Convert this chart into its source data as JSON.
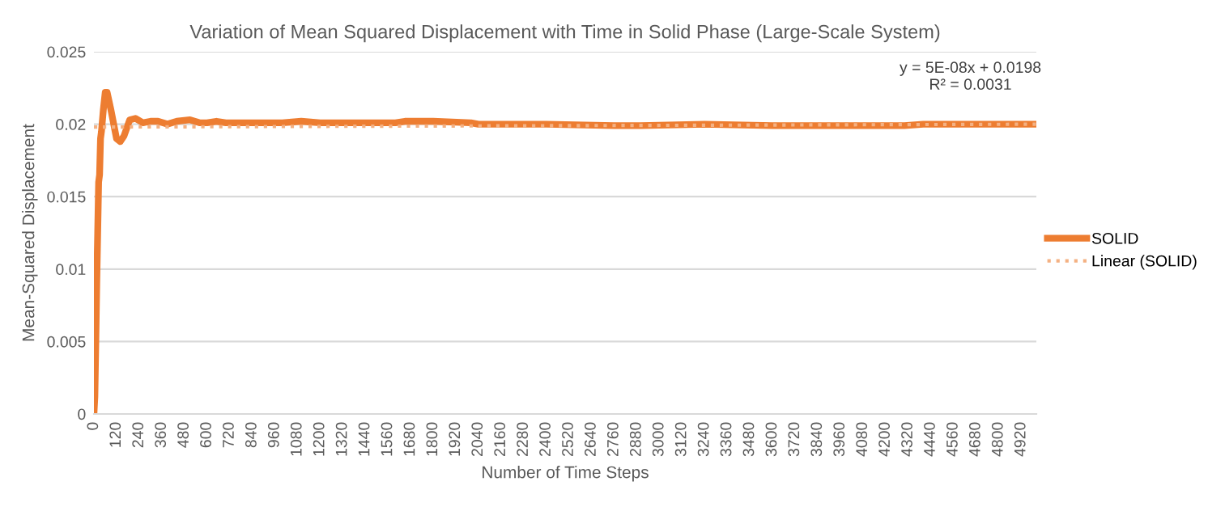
{
  "chart_data": {
    "type": "line",
    "title": "Variation of Mean Squared Displacement with Time in Solid Phase (Large-Scale System)",
    "xlabel": "Number of Time Steps",
    "ylabel": "Mean-Squared Displacement",
    "series": [
      {
        "name": "SOLID",
        "color": "#ed7d31",
        "line_style": "solid",
        "x": [
          0,
          5,
          10,
          15,
          20,
          25,
          30,
          35,
          40,
          50,
          60,
          70,
          90,
          120,
          140,
          160,
          190,
          220,
          260,
          300,
          340,
          390,
          440,
          510,
          560,
          600,
          650,
          700,
          900,
          1000,
          1100,
          1200,
          1600,
          1650,
          1800,
          2000,
          2040,
          2400,
          2760,
          2900,
          3240,
          3600,
          4300,
          4400,
          5000
        ],
        "values": [
          0,
          0.0012,
          0.005,
          0.009,
          0.0125,
          0.016,
          0.0165,
          0.019,
          0.0195,
          0.021,
          0.0222,
          0.0222,
          0.021,
          0.019,
          0.0188,
          0.0192,
          0.0203,
          0.0204,
          0.0201,
          0.0202,
          0.0202,
          0.02,
          0.0202,
          0.0203,
          0.0201,
          0.0201,
          0.0202,
          0.0201,
          0.0201,
          0.0201,
          0.0202,
          0.0201,
          0.0201,
          0.0202,
          0.0202,
          0.0201,
          0.02,
          0.02,
          0.0199,
          0.0199,
          0.02,
          0.0199,
          0.0199,
          0.02,
          0.02
        ]
      },
      {
        "name": "Linear (SOLID)",
        "color": "#f4b183",
        "line_style": "dotted",
        "x": [
          0,
          5000
        ],
        "values": [
          0.0198,
          0.02
        ]
      }
    ],
    "annotations": [
      "y = 5E-08x + 0.0198\nR² = 0.0031"
    ],
    "xlim": [
      0,
      5000
    ],
    "xticks": [
      0,
      120,
      240,
      360,
      480,
      600,
      720,
      840,
      960,
      1080,
      1200,
      1320,
      1440,
      1560,
      1680,
      1800,
      1920,
      2040,
      2160,
      2280,
      2400,
      2520,
      2640,
      2760,
      2880,
      3000,
      3120,
      3240,
      3360,
      3480,
      3600,
      3720,
      3840,
      3960,
      4080,
      4200,
      4320,
      4440,
      4560,
      4680,
      4800,
      4920
    ],
    "ylim": [
      0,
      0.025
    ],
    "yticks": [
      0,
      0.005,
      0.01,
      0.015,
      0.02,
      0.025
    ],
    "grid": "y",
    "legend": "right"
  }
}
